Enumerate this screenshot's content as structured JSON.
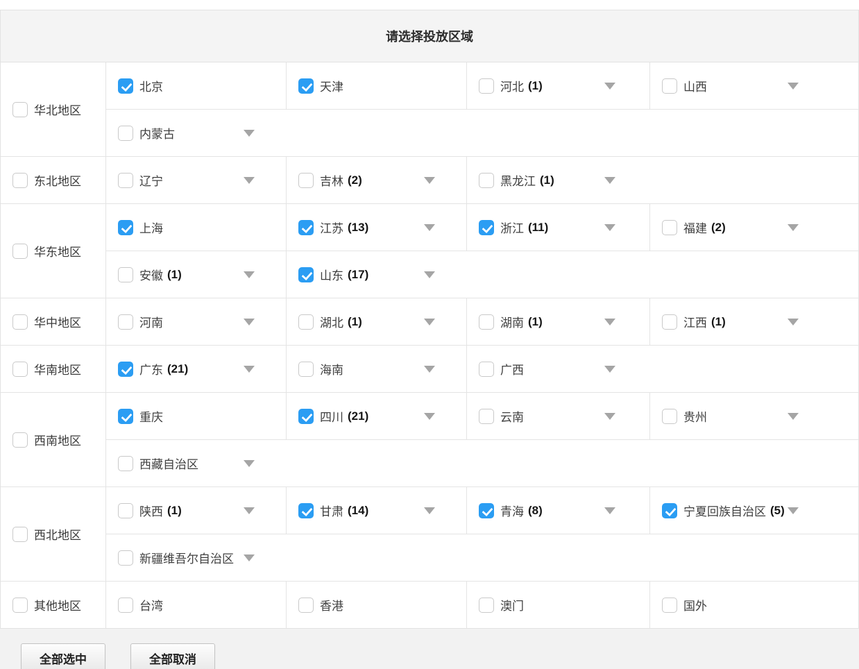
{
  "title": "请选择投放区域",
  "colors": {
    "accent_checkbox_blue": "#2b9df3",
    "header_bg": "#f4f4f4",
    "footer_bg": "#f2f2f2",
    "border": "#e4e4e4"
  },
  "buttons": {
    "select_all": "全部选中",
    "deselect_all": "全部取消"
  },
  "groups": [
    {
      "label": "华北地区",
      "checked": false,
      "lines": [
        [
          {
            "label": "北京",
            "checked": true
          },
          {
            "label": "天津",
            "checked": true
          },
          {
            "label": "河北",
            "count": "(1)",
            "checked": false
          },
          {
            "label": "山西",
            "checked": false
          }
        ],
        [
          {
            "label": "内蒙古",
            "checked": false
          }
        ]
      ]
    },
    {
      "label": "东北地区",
      "checked": false,
      "lines": [
        [
          {
            "label": "辽宁",
            "checked": false
          },
          {
            "label": "吉林",
            "count": "(2)",
            "checked": false
          },
          {
            "label": "黑龙江",
            "count": "(1)",
            "checked": false
          }
        ]
      ]
    },
    {
      "label": "华东地区",
      "checked": false,
      "lines": [
        [
          {
            "label": "上海",
            "checked": true
          },
          {
            "label": "江苏",
            "count": "(13)",
            "checked": true
          },
          {
            "label": "浙江",
            "count": "(11)",
            "checked": true
          },
          {
            "label": "福建",
            "count": "(2)",
            "checked": false
          }
        ],
        [
          {
            "label": "安徽",
            "count": "(1)",
            "checked": false
          },
          {
            "label": "山东",
            "count": "(17)",
            "checked": true
          }
        ]
      ]
    },
    {
      "label": "华中地区",
      "checked": false,
      "lines": [
        [
          {
            "label": "河南",
            "checked": false
          },
          {
            "label": "湖北",
            "count": "(1)",
            "checked": false
          },
          {
            "label": "湖南",
            "count": "(1)",
            "checked": false
          },
          {
            "label": "江西",
            "count": "(1)",
            "checked": false
          }
        ]
      ]
    },
    {
      "label": "华南地区",
      "checked": false,
      "lines": [
        [
          {
            "label": "广东",
            "count": "(21)",
            "checked": true
          },
          {
            "label": "海南",
            "checked": false
          },
          {
            "label": "广西",
            "checked": false
          }
        ]
      ]
    },
    {
      "label": "西南地区",
      "checked": false,
      "lines": [
        [
          {
            "label": "重庆",
            "checked": true
          },
          {
            "label": "四川",
            "count": "(21)",
            "checked": true
          },
          {
            "label": "云南",
            "checked": false
          },
          {
            "label": "贵州",
            "checked": false
          }
        ],
        [
          {
            "label": "西藏自治区",
            "checked": false
          }
        ]
      ]
    },
    {
      "label": "西北地区",
      "checked": false,
      "lines": [
        [
          {
            "label": "陕西",
            "count": "(1)",
            "checked": false
          },
          {
            "label": "甘肃",
            "count": "(14)",
            "checked": true
          },
          {
            "label": "青海",
            "count": "(8)",
            "checked": true
          },
          {
            "label": "宁夏回族自治区",
            "count": "(5)",
            "checked": true
          }
        ],
        [
          {
            "label": "新疆维吾尔自治区",
            "checked": false
          }
        ]
      ]
    },
    {
      "label": "其他地区",
      "checked": false,
      "lines": [
        [
          {
            "label": "台湾",
            "checked": false
          },
          {
            "label": "香港",
            "checked": false
          },
          {
            "label": "澳门",
            "checked": false
          },
          {
            "label": "国外",
            "checked": false
          }
        ]
      ]
    }
  ]
}
